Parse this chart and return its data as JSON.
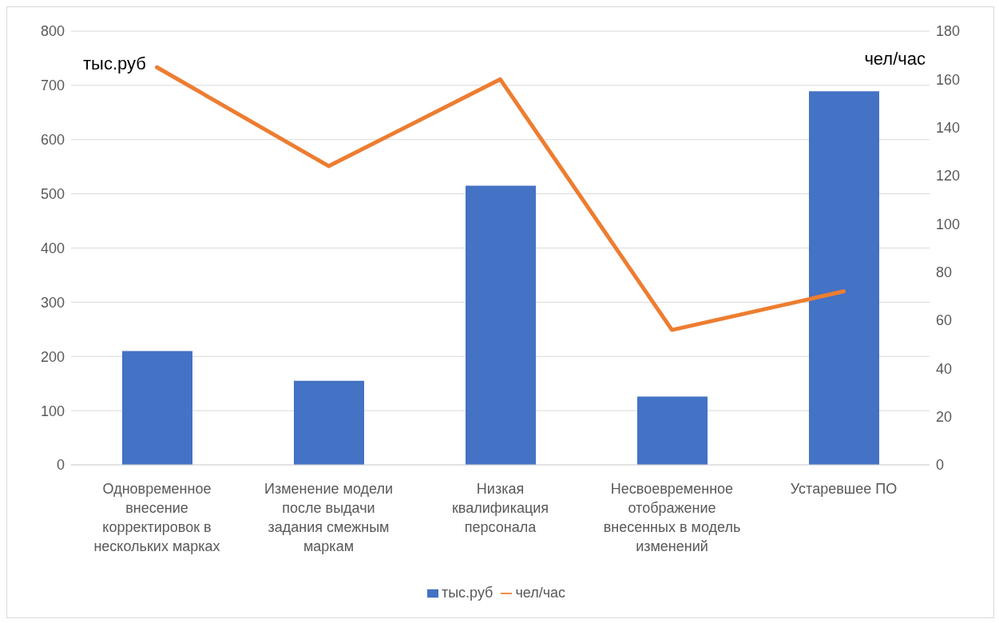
{
  "chart_data": {
    "type": "bar",
    "ylabel": "тыс.руб",
    "y2label": "чел/час",
    "categories": [
      "Одновременное внесение корректировок в нескольких марках",
      "Изменение модели после выдачи задания смежным маркам",
      "Низкая квалификация персонала",
      "Несвоевременное отображение внесенных в модель изменений",
      "Устаревшее ПО"
    ],
    "series": [
      {
        "name": "тыс.руб",
        "color": "#4472c4",
        "values": [
          210,
          155,
          515,
          126,
          689
        ]
      },
      {
        "name": "чел/час",
        "type": "line",
        "axis": "y2",
        "color": "#ed7d31",
        "values": [
          165,
          124,
          160,
          56,
          72
        ]
      }
    ],
    "ylim": [
      0,
      800
    ],
    "yticks": [
      0,
      100,
      200,
      300,
      400,
      500,
      600,
      700,
      800
    ],
    "y2lim": [
      0,
      180
    ],
    "y2ticks": [
      0,
      20,
      40,
      60,
      80,
      100,
      120,
      140,
      160,
      180
    ],
    "grid": "y",
    "legend": "bottom",
    "marker": "none",
    "line_style": "solid"
  }
}
